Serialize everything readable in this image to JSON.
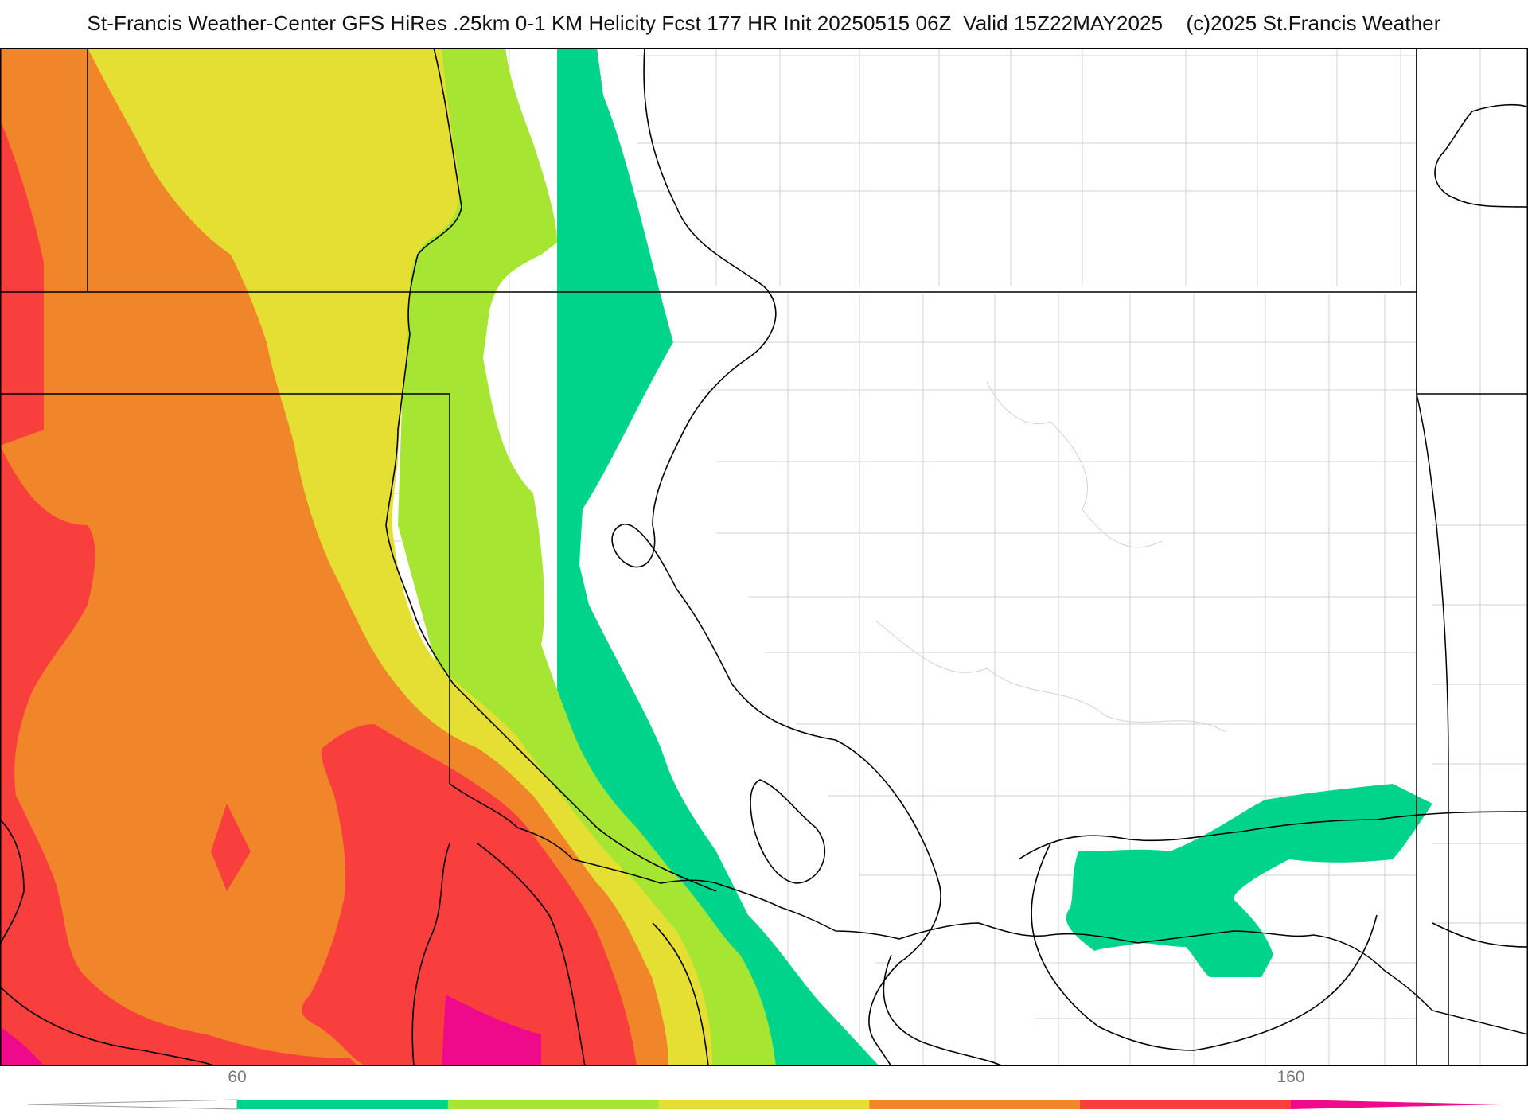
{
  "header": {
    "title": "St-Francis Weather-Center GFS HiRes .25km 0-1 KM Helicity Fcst 177 HR Init 20250515 06Z  Valid 15Z22MAY2025    (c)2025 St.Francis Weather"
  },
  "map": {
    "product": "0-1 KM Helicity",
    "fill_colors": [
      "#00d48a",
      "#a6e632",
      "#e5df34",
      "#f0852a",
      "#f93e3e",
      "#ee0a8a"
    ],
    "boundary_color": "#000000",
    "county_line_color": "#cfcfcf"
  },
  "colorbar": {
    "ticks": [
      "60",
      "160"
    ],
    "colors": [
      "#00d48a",
      "#a6e632",
      "#e5df34",
      "#f0852a",
      "#f93e3e",
      "#ee0a8a"
    ]
  }
}
